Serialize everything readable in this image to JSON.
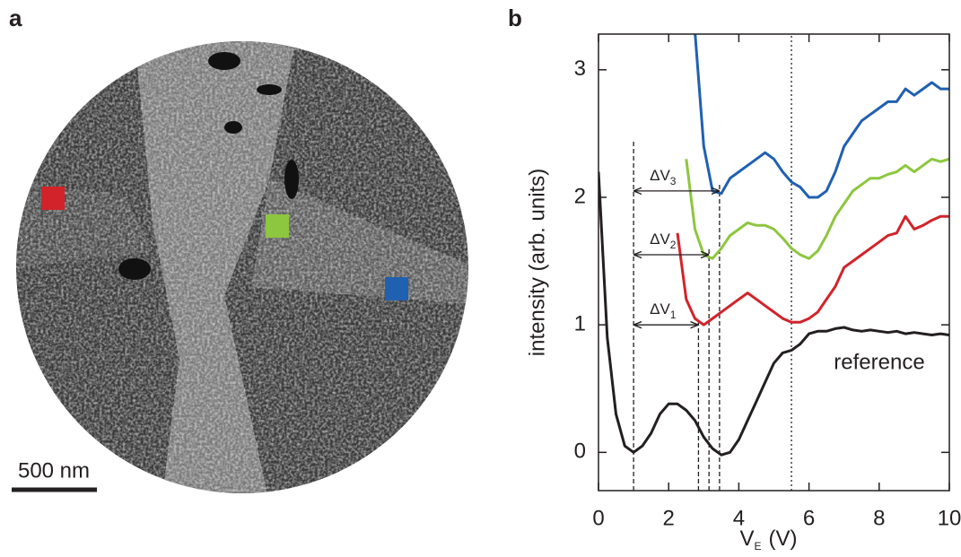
{
  "panel_a": {
    "label": "a",
    "scale_bar": "500 nm"
  },
  "chart_data": {
    "type": "line",
    "panel_label": "b",
    "x_label": {
      "text": "V",
      "subscript": "E",
      "unit": "(V)"
    },
    "y_label": "intensity (arb. units)",
    "xlim": [
      0,
      10
    ],
    "xticks": [
      0,
      2,
      4,
      6,
      8,
      10
    ],
    "ylim": [
      -0.3,
      3.28
    ],
    "yticks": [
      0,
      1,
      2,
      3
    ],
    "x": [
      0,
      0.25,
      0.5,
      0.75,
      1.0,
      1.25,
      1.5,
      1.75,
      2.0,
      2.25,
      2.5,
      2.75,
      3.0,
      3.25,
      3.5,
      3.75,
      4.0,
      4.25,
      4.5,
      4.75,
      5.0,
      5.25,
      5.5,
      5.75,
      6.0,
      6.25,
      6.5,
      6.75,
      7.0,
      7.25,
      7.5,
      7.75,
      8.0,
      8.25,
      8.5,
      8.75,
      9.0,
      9.25,
      9.5,
      9.75,
      10.0
    ],
    "series": [
      {
        "name": "reference",
        "color": "#231f20",
        "values": [
          2.2,
          0.9,
          0.3,
          0.05,
          0.0,
          0.05,
          0.15,
          0.3,
          0.38,
          0.38,
          0.33,
          0.25,
          0.12,
          0.03,
          -0.02,
          0.0,
          0.1,
          0.25,
          0.4,
          0.55,
          0.7,
          0.78,
          0.8,
          0.85,
          0.93,
          0.95,
          0.95,
          0.97,
          0.98,
          0.96,
          0.95,
          0.96,
          0.95,
          0.94,
          0.95,
          0.93,
          0.94,
          0.93,
          0.92,
          0.93,
          0.92
        ]
      },
      {
        "color": "#d2232a",
        "values": [
          null,
          null,
          null,
          null,
          null,
          null,
          null,
          null,
          null,
          1.72,
          1.2,
          1.05,
          1.0,
          1.05,
          1.1,
          1.15,
          1.2,
          1.25,
          1.2,
          1.15,
          1.1,
          1.05,
          1.02,
          1.02,
          1.05,
          1.1,
          1.2,
          1.3,
          1.45,
          1.5,
          1.55,
          1.6,
          1.65,
          1.7,
          1.72,
          1.85,
          1.75,
          1.78,
          1.82,
          1.85,
          1.85
        ]
      },
      {
        "color": "#8dc63f",
        "values": [
          null,
          null,
          null,
          null,
          null,
          null,
          null,
          null,
          null,
          null,
          2.3,
          1.75,
          1.55,
          1.52,
          1.6,
          1.7,
          1.75,
          1.8,
          1.78,
          1.78,
          1.75,
          1.68,
          1.6,
          1.55,
          1.52,
          1.58,
          1.7,
          1.85,
          1.95,
          2.05,
          2.1,
          2.15,
          2.15,
          2.18,
          2.2,
          2.25,
          2.2,
          2.25,
          2.3,
          2.28,
          2.3
        ]
      },
      {
        "color": "#2060b0",
        "values": [
          null,
          null,
          null,
          null,
          null,
          null,
          null,
          null,
          null,
          null,
          null,
          3.3,
          2.4,
          2.05,
          2.03,
          2.15,
          2.2,
          2.25,
          2.3,
          2.35,
          2.3,
          2.2,
          2.12,
          2.08,
          2.0,
          2.0,
          2.05,
          2.2,
          2.4,
          2.5,
          2.6,
          2.65,
          2.7,
          2.75,
          2.75,
          2.85,
          2.8,
          2.85,
          2.9,
          2.85,
          2.85
        ]
      }
    ],
    "vlines": [
      {
        "x": 1.0,
        "style": "dashed"
      },
      {
        "x": 2.85,
        "style": "dashed"
      },
      {
        "x": 3.15,
        "style": "dashed"
      },
      {
        "x": 3.45,
        "style": "dashed"
      },
      {
        "x": 5.5,
        "style": "dotted"
      }
    ],
    "intervals": [
      {
        "text": "ΔV",
        "subscript": "1",
        "x1": 1.0,
        "x2": 2.85,
        "y": 1.0
      },
      {
        "text": "ΔV",
        "subscript": "2",
        "x1": 1.0,
        "x2": 3.15,
        "y": 1.55
      },
      {
        "text": "ΔV",
        "subscript": "3",
        "x1": 1.0,
        "x2": 3.45,
        "y": 2.05
      }
    ]
  }
}
